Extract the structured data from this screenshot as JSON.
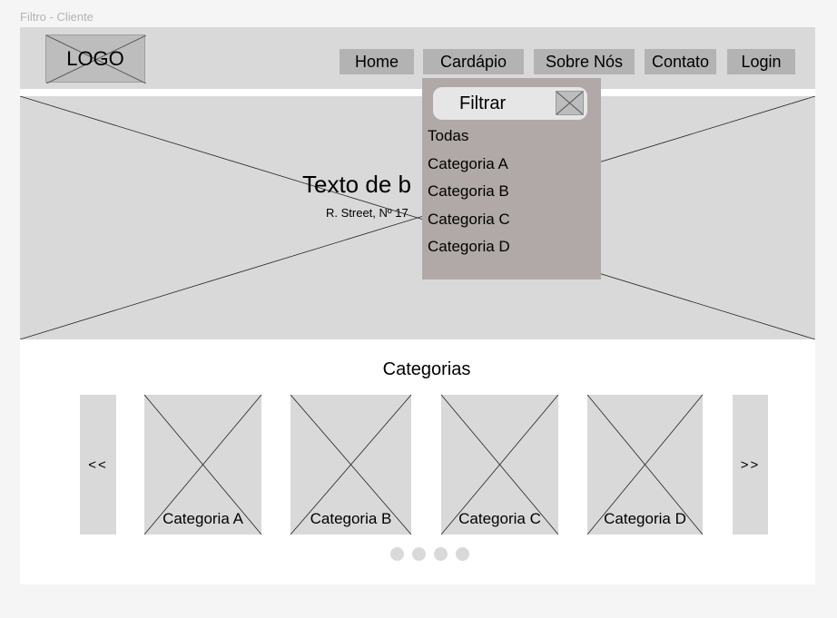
{
  "frame_label": "Filtro - Cliente",
  "header": {
    "logo": "LOGO",
    "nav": [
      "Home",
      "Cardápio",
      "Sobre Nós",
      "Contato",
      "Login"
    ]
  },
  "hero": {
    "title": "Texto de b",
    "subtitle": "R. Street, Nº 17"
  },
  "filter_dropdown": {
    "label": "Filtrar",
    "options": [
      "Todas",
      "Categoria A",
      "Categoria B",
      "Categoria C",
      "Categoria D"
    ]
  },
  "categories": {
    "title": "Categorias",
    "prev": "<<",
    "next": ">>",
    "cards": [
      "Categoria A",
      "Categoria B",
      "Categoria C",
      "Categoria D"
    ],
    "dot_count": 4
  },
  "colors": {
    "placeholder": "#d9d9d9",
    "nav_button": "#b3b3b3",
    "dropdown": "#b0a9a7",
    "filter_box": "#e6e6e6"
  }
}
